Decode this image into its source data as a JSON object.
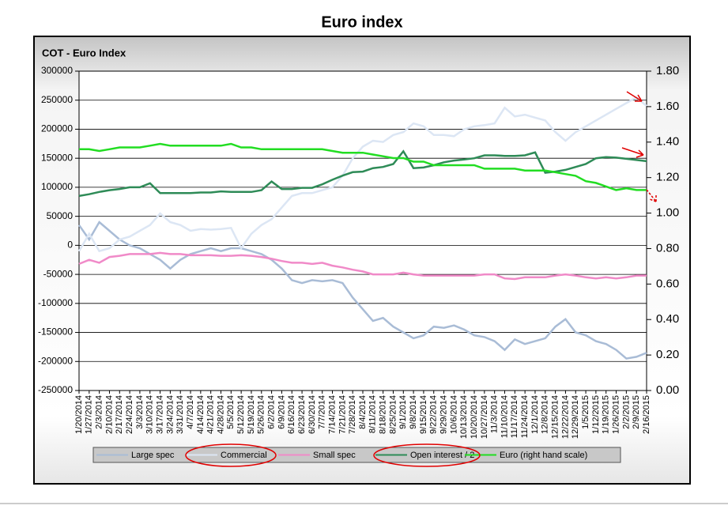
{
  "chart_data": {
    "type": "line",
    "title": "Euro index",
    "subtitle": "COT - Euro Index",
    "categories": [
      "1/20/2014",
      "1/27/2014",
      "2/3/2014",
      "2/10/2014",
      "2/17/2014",
      "2/24/2014",
      "3/3/2014",
      "3/10/2014",
      "3/17/2014",
      "3/24/2014",
      "3/31/2014",
      "4/7/2014",
      "4/14/2014",
      "4/21/2014",
      "4/28/2014",
      "5/5/2014",
      "5/12/2014",
      "5/19/2014",
      "5/26/2014",
      "6/2/2014",
      "6/9/2014",
      "6/16/2014",
      "6/23/2014",
      "6/30/2014",
      "7/7/2014",
      "7/14/2014",
      "7/21/2014",
      "7/28/2014",
      "8/4/2014",
      "8/11/2014",
      "8/18/2014",
      "8/25/2014",
      "9/1/2014",
      "9/8/2014",
      "9/15/2014",
      "9/22/2014",
      "9/29/2014",
      "10/6/2014",
      "10/13/2014",
      "10/20/2014",
      "10/27/2014",
      "11/3/2014",
      "11/10/2014",
      "11/17/2014",
      "11/24/2014",
      "12/1/2014",
      "12/8/2014",
      "12/15/2014",
      "12/22/2014",
      "12/29/2014",
      "1/5/2015",
      "1/12/2015",
      "1/19/2015",
      "1/26/2015",
      "2/2/2015",
      "2/9/2015",
      "2/16/2015"
    ],
    "series": [
      {
        "name": "Large spec",
        "color": "#a9bcd6",
        "values": [
          35000,
          10000,
          40000,
          25000,
          10000,
          0,
          -5000,
          -15000,
          -25000,
          -40000,
          -25000,
          -15000,
          -10000,
          -5000,
          -10000,
          -5000,
          -5000,
          -10000,
          -15000,
          -25000,
          -40000,
          -60000,
          -65000,
          -60000,
          -62000,
          -60000,
          -65000,
          -90000,
          -110000,
          -130000,
          -125000,
          -140000,
          -150000,
          -160000,
          -155000,
          -140000,
          -142000,
          -138000,
          -145000,
          -155000,
          -158000,
          -165000,
          -180000,
          -162000,
          -170000,
          -165000,
          -160000,
          -140000,
          -127000,
          -150000,
          -155000,
          -165000,
          -170000,
          -180000,
          -195000,
          -192000,
          -185000
        ]
      },
      {
        "name": "Commercial",
        "color": "#dce6f4",
        "values": [
          -10000,
          20000,
          -10000,
          -5000,
          10000,
          15000,
          25000,
          35000,
          55000,
          40000,
          35000,
          25000,
          28000,
          27000,
          28000,
          30000,
          -5000,
          20000,
          35000,
          45000,
          65000,
          85000,
          90000,
          90000,
          95000,
          100000,
          120000,
          150000,
          170000,
          180000,
          178000,
          190000,
          195000,
          210000,
          205000,
          190000,
          190000,
          188000,
          200000,
          205000,
          207000,
          210000,
          237000,
          222000,
          225000,
          220000,
          215000,
          195000,
          180000,
          195000,
          205000,
          215000,
          225000,
          235000,
          245000,
          255000,
          240000
        ]
      },
      {
        "name": "Small spec",
        "color": "#f08ac8",
        "values": [
          -32000,
          -25000,
          -30000,
          -20000,
          -18000,
          -15000,
          -15000,
          -15000,
          -13000,
          -15000,
          -15000,
          -17000,
          -17000,
          -17000,
          -18000,
          -18000,
          -17000,
          -18000,
          -20000,
          -23000,
          -27000,
          -30000,
          -30000,
          -32000,
          -30000,
          -35000,
          -38000,
          -42000,
          -45000,
          -50000,
          -50000,
          -50000,
          -47000,
          -50000,
          -52000,
          -52000,
          -52000,
          -52000,
          -52000,
          -52000,
          -50000,
          -50000,
          -57000,
          -58000,
          -55000,
          -55000,
          -55000,
          -52000,
          -50000,
          -52000,
          -55000,
          -57000,
          -55000,
          -57000,
          -55000,
          -52000,
          -52000
        ]
      },
      {
        "name": "Open interest / 2",
        "color": "#2e8b57",
        "values": [
          85000,
          88000,
          92000,
          95000,
          97000,
          100000,
          100000,
          107000,
          90000,
          90000,
          90000,
          90000,
          91000,
          91000,
          93000,
          92000,
          92000,
          92000,
          95000,
          110000,
          97000,
          97000,
          99000,
          99000,
          105000,
          113000,
          120000,
          126000,
          127000,
          133000,
          135000,
          140000,
          162000,
          133000,
          134000,
          138000,
          143000,
          146000,
          148000,
          150000,
          155000,
          155000,
          154000,
          154000,
          155000,
          160000,
          125000,
          127000,
          130000,
          135000,
          140000,
          150000,
          152000,
          151000,
          149000,
          147000,
          145000
        ]
      },
      {
        "name": "Euro (right hand scale)",
        "color": "#22dd22",
        "axis": "y2",
        "values": [
          1.36,
          1.36,
          1.35,
          1.36,
          1.37,
          1.37,
          1.37,
          1.38,
          1.39,
          1.38,
          1.38,
          1.38,
          1.38,
          1.38,
          1.38,
          1.39,
          1.37,
          1.37,
          1.36,
          1.36,
          1.36,
          1.36,
          1.36,
          1.36,
          1.36,
          1.35,
          1.34,
          1.34,
          1.34,
          1.33,
          1.32,
          1.31,
          1.31,
          1.29,
          1.29,
          1.27,
          1.27,
          1.27,
          1.27,
          1.27,
          1.25,
          1.25,
          1.25,
          1.25,
          1.24,
          1.24,
          1.24,
          1.23,
          1.22,
          1.21,
          1.18,
          1.17,
          1.15,
          1.13,
          1.14,
          1.13,
          1.13
        ]
      }
    ],
    "ylim": [
      -250000,
      300000
    ],
    "yticks": [
      -250000,
      -200000,
      -150000,
      -100000,
      -50000,
      0,
      50000,
      100000,
      150000,
      200000,
      250000,
      300000
    ],
    "y2lim": [
      0,
      1.8
    ],
    "y2ticks": [
      {
        "value": 0,
        "label": "0.00"
      },
      {
        "value": 0.2,
        "label": "0.20"
      },
      {
        "value": 0.4,
        "label": "0.40"
      },
      {
        "value": 0.6,
        "label": "0.60"
      },
      {
        "value": 0.8,
        "label": "0.80"
      },
      {
        "value": 1,
        "label": "1.00"
      },
      {
        "value": 1.2,
        "label": "1.20"
      },
      {
        "value": 1.4,
        "label": "1.40"
      },
      {
        "value": 1.6,
        "label": "1.60"
      },
      {
        "value": 1.8,
        "label": "1.80"
      }
    ],
    "grid": true
  }
}
